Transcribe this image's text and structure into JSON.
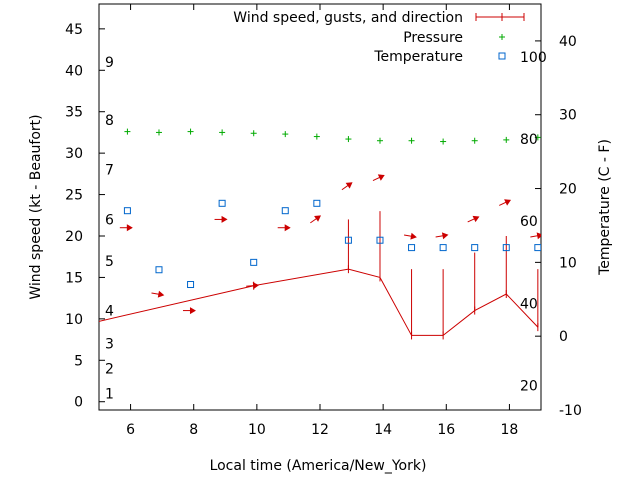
{
  "chart_data": {
    "type": "line",
    "xlabel": "Local time (America/New_York)",
    "ylabel": "Wind speed (kt - Beaufort)",
    "y2label": "Temperature (C - F)",
    "xlim": [
      5,
      19
    ],
    "ylim": [
      -1,
      48
    ],
    "y2lim": [
      -10,
      45
    ],
    "xticks": [
      6,
      8,
      10,
      12,
      14,
      16,
      18
    ],
    "yticks": [
      0,
      5,
      10,
      15,
      20,
      25,
      30,
      35,
      40,
      45
    ],
    "y2ticks": [
      -10,
      0,
      10,
      20,
      30,
      40
    ],
    "beaufort_labels": [
      {
        "label": "1",
        "y": 1
      },
      {
        "label": "2",
        "y": 4
      },
      {
        "label": "3",
        "y": 7
      },
      {
        "label": "4",
        "y": 11
      },
      {
        "label": "5",
        "y": 17
      },
      {
        "label": "6",
        "y": 22
      },
      {
        "label": "7",
        "y": 28
      },
      {
        "label": "8",
        "y": 34
      },
      {
        "label": "9",
        "y": 41
      }
    ],
    "fahrenheit_labels": [
      {
        "label": "20",
        "c": -6.7
      },
      {
        "label": "40",
        "c": 4.4
      },
      {
        "label": "60",
        "c": 15.6
      },
      {
        "label": "80",
        "c": 26.7
      },
      {
        "label": "100",
        "c": 37.8
      }
    ],
    "legend": [
      {
        "label": "Wind speed, gusts, and direction",
        "color": "#cc0000",
        "marker": "line"
      },
      {
        "label": "Pressure",
        "color": "#00aa00",
        "marker": "plus"
      },
      {
        "label": "Temperature",
        "color": "#0066cc",
        "marker": "square"
      }
    ],
    "wind": {
      "x": [
        4.2,
        9.9,
        12.9,
        13.9,
        14.9,
        15.9,
        16.9,
        17.9,
        18.9
      ],
      "speed": [
        9,
        14,
        16,
        15,
        8,
        8,
        11,
        13,
        9
      ],
      "gust": [
        null,
        null,
        22,
        23,
        16,
        16,
        18,
        20,
        16
      ]
    },
    "wind_direction": {
      "x": [
        5.85,
        6.85,
        7.85,
        8.85,
        9.85,
        10.85,
        11.85,
        12.85,
        13.85,
        14.85,
        15.85,
        16.85,
        17.85,
        18.85
      ],
      "y": [
        21,
        13,
        11,
        22,
        14,
        21,
        22,
        26,
        27,
        20,
        20,
        22,
        24,
        20
      ],
      "angle_deg": [
        0,
        10,
        0,
        0,
        -5,
        0,
        -35,
        -35,
        -25,
        10,
        -10,
        -25,
        -25,
        -10
      ]
    },
    "pressure": {
      "x": [
        5.9,
        6.9,
        7.9,
        8.9,
        9.9,
        10.9,
        11.9,
        12.9,
        13.9,
        14.9,
        15.9,
        16.9,
        17.9,
        18.9
      ],
      "y": [
        32.6,
        32.5,
        32.6,
        32.5,
        32.4,
        32.3,
        32.0,
        31.7,
        31.5,
        31.5,
        31.4,
        31.5,
        31.6,
        31.9
      ]
    },
    "temperature": {
      "x": [
        5.9,
        6.9,
        7.9,
        8.9,
        9.9,
        10.9,
        11.9,
        12.9,
        13.9,
        14.9,
        15.9,
        16.9,
        17.9,
        18.9
      ],
      "y": [
        17,
        9,
        7,
        18,
        10,
        17,
        18,
        13,
        13,
        12,
        12,
        12,
        12,
        12
      ]
    }
  }
}
